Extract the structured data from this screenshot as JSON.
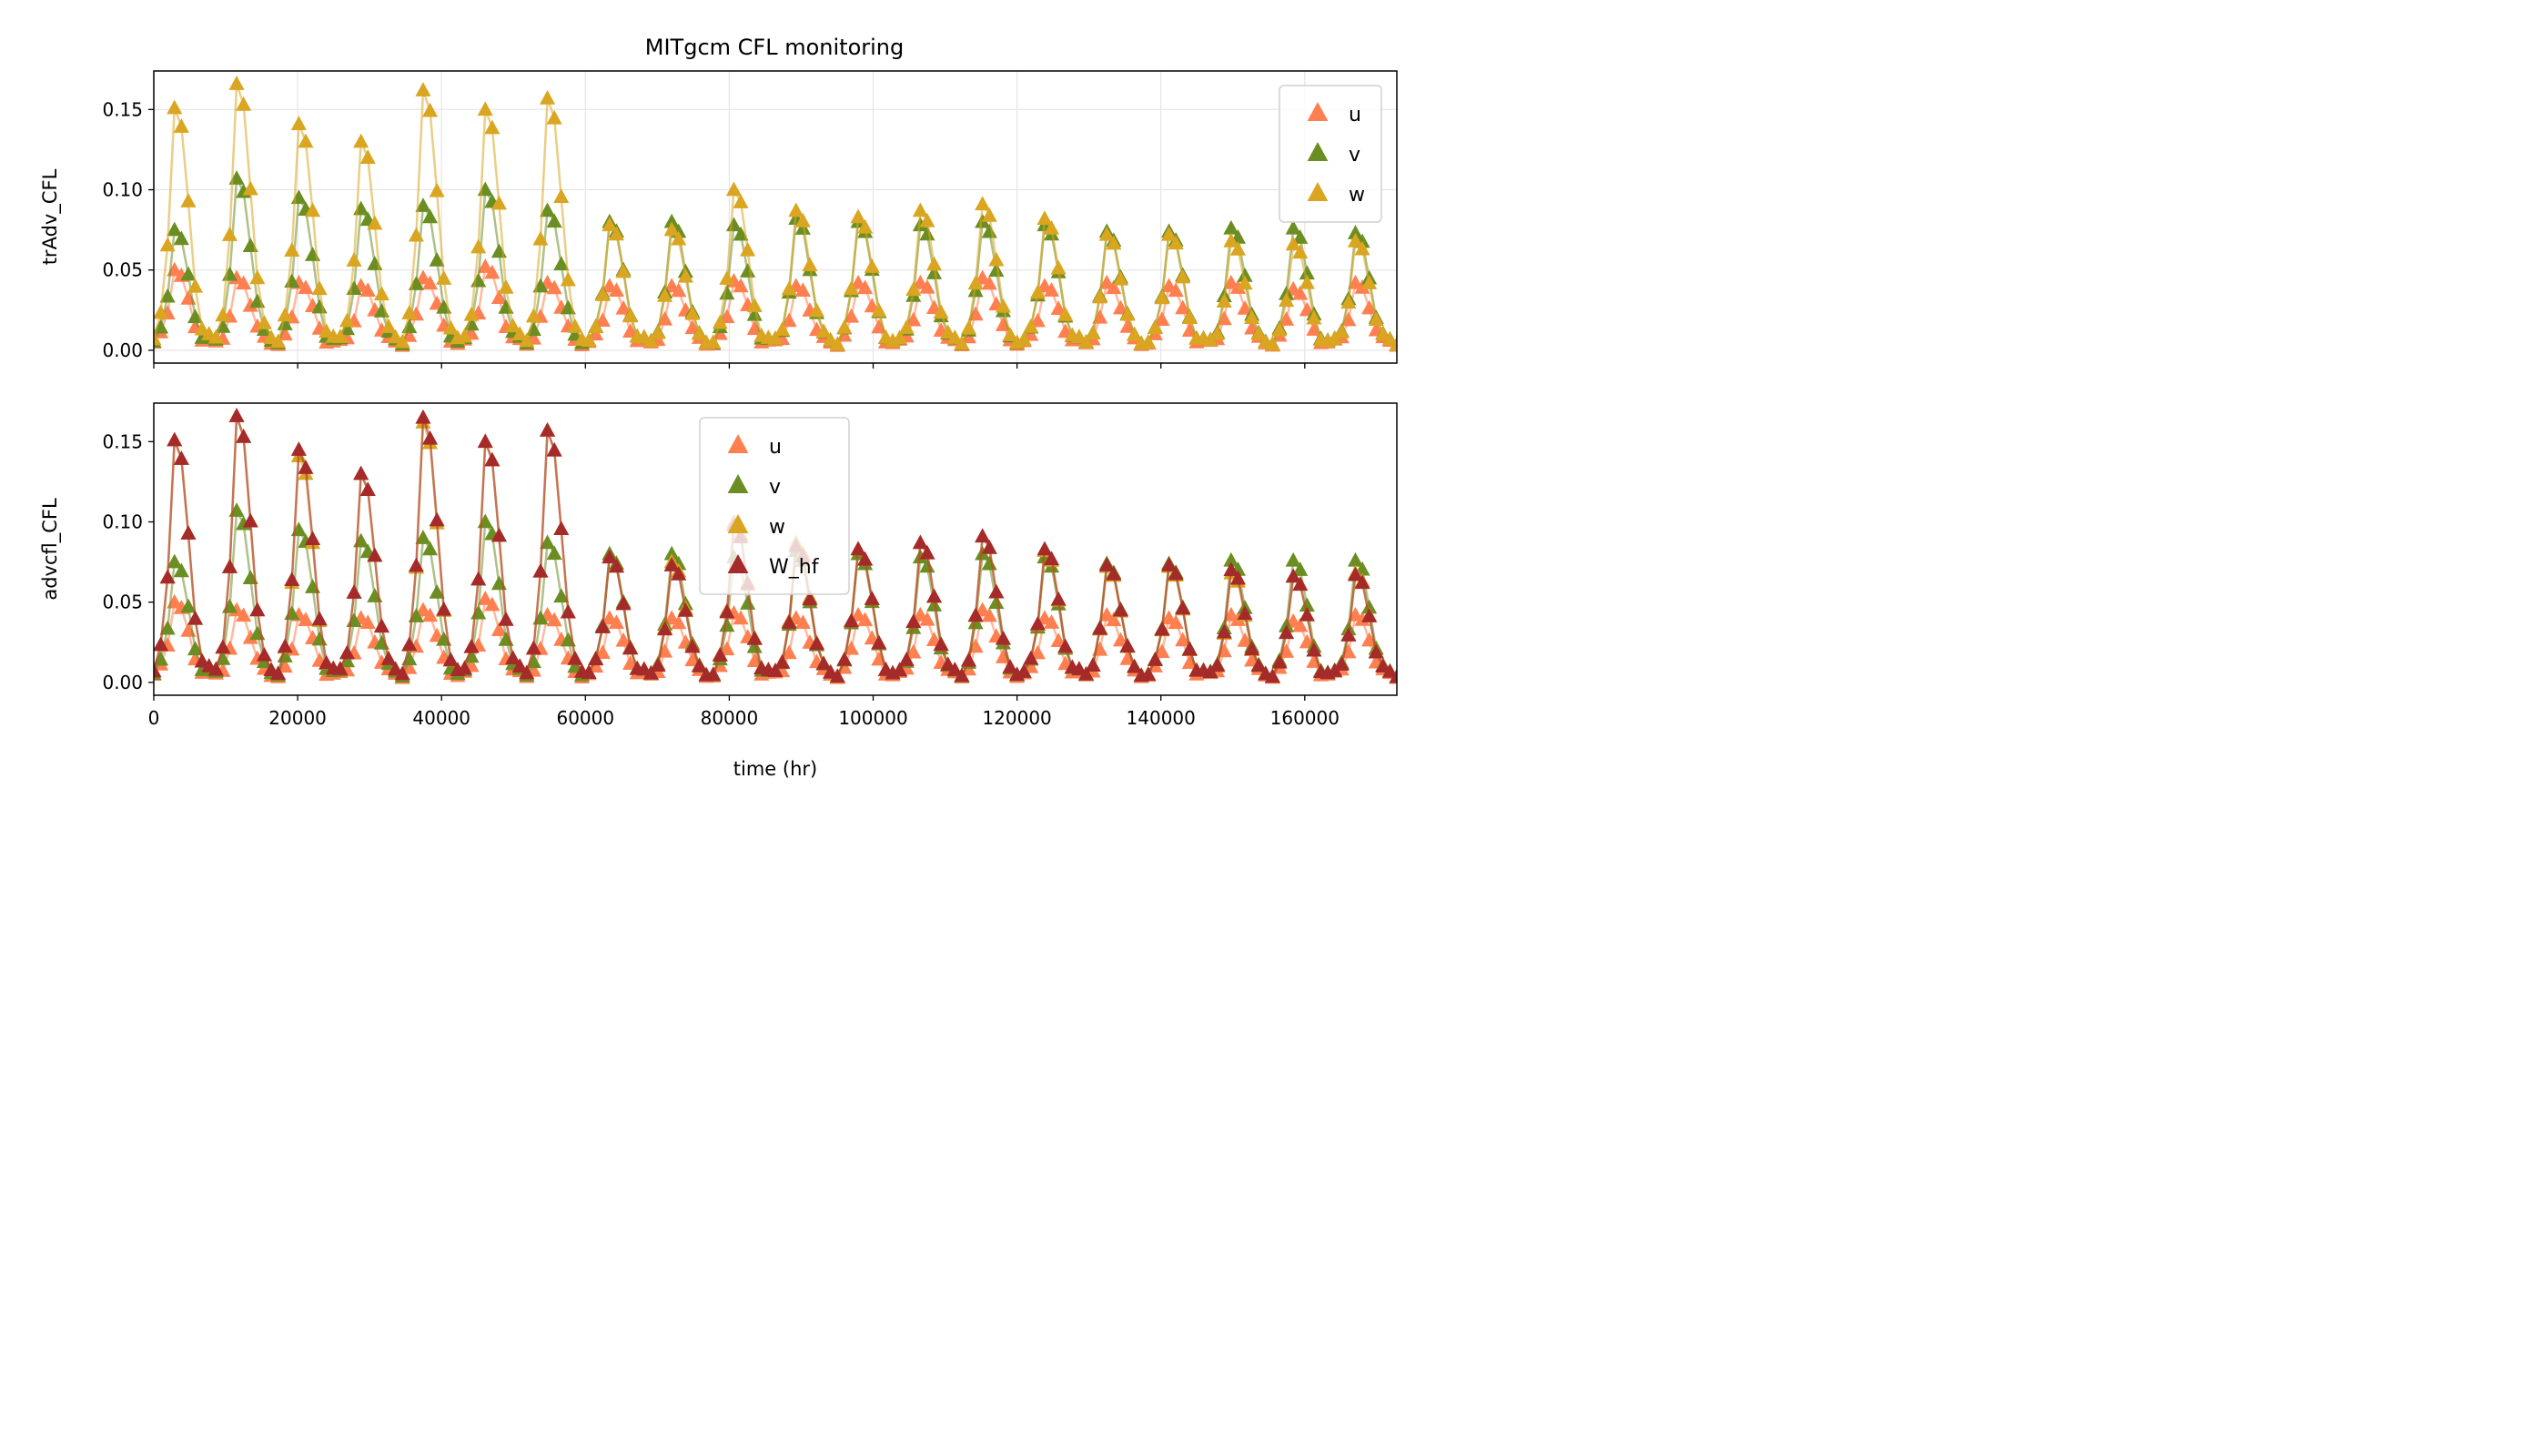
{
  "title": "MITgcm CFL monitoring",
  "colors": {
    "u": "#ff7f50",
    "v": "#6b8e23",
    "w": "#daa520",
    "W_hf": "#a52a2a",
    "grid": "#e5e5e5",
    "axis": "#000000"
  },
  "chart_data": [
    {
      "type": "line",
      "marker": "triangle-up",
      "ylabel": "trAdv_CFL",
      "xlabel": "",
      "xlim": [
        0,
        172800
      ],
      "ylim": [
        -0.008,
        0.174
      ],
      "xticks": [
        0,
        20000,
        40000,
        60000,
        80000,
        100000,
        120000,
        140000,
        160000
      ],
      "yticks": [
        0.0,
        0.05,
        0.1,
        0.15
      ],
      "ytick_labels": [
        "0.00",
        "0.05",
        "0.10",
        "0.15"
      ],
      "grid": true,
      "legend": "top-right",
      "sample_interval_hr": 960,
      "period_hr": 8640,
      "series": [
        {
          "name": "u",
          "color": "#ff7f50",
          "peaks": [
            0.05,
            0.045,
            0.042,
            0.04,
            0.045,
            0.052,
            0.042,
            0.04,
            0.04,
            0.043,
            0.04,
            0.042,
            0.042,
            0.045,
            0.04,
            0.042,
            0.04,
            0.042,
            0.038,
            0.042
          ]
        },
        {
          "name": "v",
          "color": "#6b8e23",
          "peaks": [
            0.075,
            0.107,
            0.095,
            0.088,
            0.09,
            0.1,
            0.087,
            0.08,
            0.08,
            0.078,
            0.082,
            0.08,
            0.078,
            0.08,
            0.078,
            0.074,
            0.074,
            0.076,
            0.076,
            0.073
          ]
        },
        {
          "name": "w",
          "color": "#daa520",
          "peaks": [
            0.151,
            0.166,
            0.141,
            0.13,
            0.162,
            0.15,
            0.157,
            0.078,
            0.075,
            0.1,
            0.087,
            0.083,
            0.087,
            0.091,
            0.082,
            0.072,
            0.072,
            0.068,
            0.066,
            0.068
          ]
        }
      ]
    },
    {
      "type": "line",
      "marker": "triangle-up",
      "ylabel": "advcfl_CFL",
      "xlabel": "time (hr)",
      "xlim": [
        0,
        172800
      ],
      "ylim": [
        -0.008,
        0.174
      ],
      "xticks": [
        0,
        20000,
        40000,
        60000,
        80000,
        100000,
        120000,
        140000,
        160000
      ],
      "xtick_labels": [
        "0",
        "20000",
        "40000",
        "60000",
        "80000",
        "100000",
        "120000",
        "140000",
        "160000"
      ],
      "yticks": [
        0.0,
        0.05,
        0.1,
        0.15
      ],
      "ytick_labels": [
        "0.00",
        "0.05",
        "0.10",
        "0.15"
      ],
      "grid": false,
      "legend": "upper-center",
      "sample_interval_hr": 960,
      "period_hr": 8640,
      "series": [
        {
          "name": "u",
          "color": "#ff7f50",
          "peaks": [
            0.05,
            0.045,
            0.042,
            0.04,
            0.045,
            0.052,
            0.042,
            0.04,
            0.04,
            0.043,
            0.04,
            0.042,
            0.042,
            0.045,
            0.04,
            0.042,
            0.04,
            0.042,
            0.038,
            0.042
          ]
        },
        {
          "name": "v",
          "color": "#6b8e23",
          "peaks": [
            0.075,
            0.107,
            0.095,
            0.088,
            0.09,
            0.1,
            0.087,
            0.08,
            0.08,
            0.078,
            0.082,
            0.08,
            0.078,
            0.08,
            0.078,
            0.074,
            0.074,
            0.076,
            0.076,
            0.076
          ]
        },
        {
          "name": "w",
          "color": "#daa520",
          "peaks": [
            0.151,
            0.166,
            0.141,
            0.13,
            0.162,
            0.15,
            0.157,
            0.078,
            0.075,
            0.1,
            0.087,
            0.083,
            0.087,
            0.091,
            0.082,
            0.072,
            0.072,
            0.068,
            0.066,
            0.068
          ]
        },
        {
          "name": "W_hf",
          "color": "#a52a2a",
          "peaks": [
            0.151,
            0.166,
            0.145,
            0.13,
            0.165,
            0.15,
            0.157,
            0.078,
            0.073,
            0.098,
            0.085,
            0.083,
            0.087,
            0.091,
            0.083,
            0.073,
            0.073,
            0.07,
            0.066,
            0.067
          ]
        }
      ]
    }
  ]
}
